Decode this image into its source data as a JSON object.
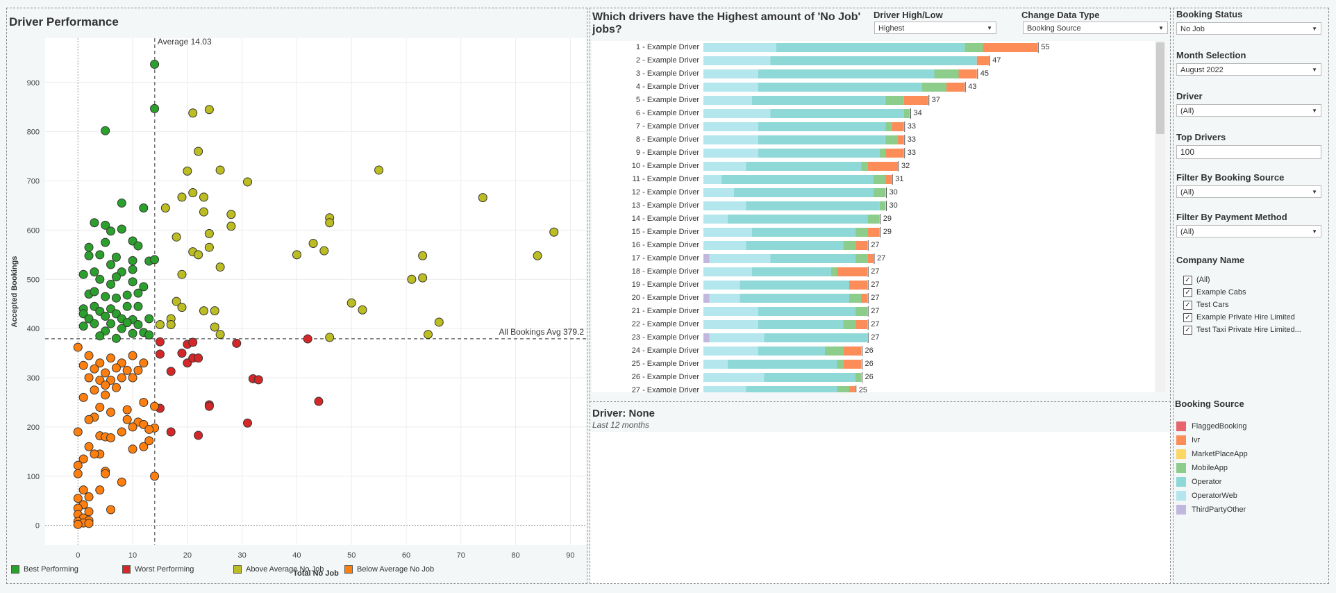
{
  "scatter": {
    "title": "Driver Performance",
    "avg_x_label": "Average 14.03",
    "avg_y_label": "All Bookings Avg 379.2",
    "legend": [
      {
        "label": "Best Performing",
        "color": "#2ca02c"
      },
      {
        "label": "Worst Performing",
        "color": "#d62728"
      },
      {
        "label": "Above Average No Job",
        "color": "#bcbd22"
      },
      {
        "label": "Below Average No Job",
        "color": "#ff7f0e"
      }
    ]
  },
  "bars": {
    "title_line1": "Which drivers have the Highest amount of 'No Job'",
    "title_line2": "jobs?",
    "high_low_label": "Driver High/Low",
    "high_low_value": "Highest",
    "data_type_label": "Change Data Type",
    "data_type_value": "Booking Source"
  },
  "detail": {
    "title": "Driver: None",
    "subtitle": "Last 12 months"
  },
  "filters": {
    "booking_status_label": "Booking Status",
    "booking_status_value": "No Job",
    "month_label": "Month Selection",
    "month_value": "August 2022",
    "driver_label": "Driver",
    "driver_value": "(All)",
    "top_drivers_label": "Top Drivers",
    "top_drivers_value": "100",
    "booking_source_filter_label": "Filter By Booking Source",
    "booking_source_filter_value": "(All)",
    "payment_label": "Filter By Payment Method",
    "payment_value": "(All)",
    "company_label": "Company Name",
    "companies": [
      "(All)",
      "Example Cabs",
      "Test Cars",
      "Example Private Hire Limited",
      "Test Taxi Private Hire Limited..."
    ],
    "booking_source_legend_title": "Booking Source",
    "booking_source_legend": [
      {
        "label": "FlaggedBooking",
        "color": "#e8656b"
      },
      {
        "label": "Ivr",
        "color": "#fc8d59"
      },
      {
        "label": "MarketPlaceApp",
        "color": "#fdd763"
      },
      {
        "label": "MobileApp",
        "color": "#8ccd8c"
      },
      {
        "label": "Operator",
        "color": "#8fd8d8"
      },
      {
        "label": "OperatorWeb",
        "color": "#b4e6ee"
      },
      {
        "label": "ThirdPartyOther",
        "color": "#c2b8de"
      }
    ]
  },
  "chart_data": [
    {
      "type": "scatter",
      "title": "Driver Performance",
      "xlabel": "Total No Job",
      "ylabel": "Accepted Bookings",
      "xlim": [
        -6,
        93
      ],
      "ylim": [
        -40,
        990
      ],
      "x_ticks": [
        0,
        10,
        20,
        30,
        40,
        50,
        60,
        70,
        80,
        90
      ],
      "y_ticks": [
        0,
        100,
        200,
        300,
        400,
        500,
        600,
        700,
        800,
        900
      ],
      "reference_lines": {
        "x_average": 14.03,
        "y_average": 379.2
      },
      "grid": true,
      "legend_position": "bottom",
      "series": [
        {
          "name": "Best Performing",
          "color": "#2ca02c",
          "points": [
            [
              14,
              937
            ],
            [
              14,
              847
            ],
            [
              5,
              802
            ],
            [
              8,
              655
            ],
            [
              12,
              645
            ],
            [
              3,
              615
            ],
            [
              5,
              610
            ],
            [
              6,
              598
            ],
            [
              8,
              602
            ],
            [
              2,
              565
            ],
            [
              5,
              575
            ],
            [
              10,
              578
            ],
            [
              11,
              568
            ],
            [
              4,
              550
            ],
            [
              2,
              548
            ],
            [
              7,
              545
            ],
            [
              10,
              538
            ],
            [
              13,
              537
            ],
            [
              14,
              540
            ],
            [
              1,
              510
            ],
            [
              3,
              515
            ],
            [
              6,
              530
            ],
            [
              8,
              515
            ],
            [
              10,
              520
            ],
            [
              7,
              505
            ],
            [
              4,
              500
            ],
            [
              6,
              490
            ],
            [
              10,
              495
            ],
            [
              12,
              485
            ],
            [
              2,
              470
            ],
            [
              3,
              475
            ],
            [
              5,
              465
            ],
            [
              7,
              462
            ],
            [
              9,
              468
            ],
            [
              11,
              472
            ],
            [
              1,
              440
            ],
            [
              3,
              445
            ],
            [
              6,
              440
            ],
            [
              9,
              445
            ],
            [
              11,
              445
            ],
            [
              1,
              430
            ],
            [
              4,
              435
            ],
            [
              7,
              430
            ],
            [
              2,
              420
            ],
            [
              5,
              425
            ],
            [
              8,
              420
            ],
            [
              10,
              418
            ],
            [
              13,
              420
            ],
            [
              3,
              410
            ],
            [
              6,
              410
            ],
            [
              9,
              412
            ],
            [
              11,
              408
            ],
            [
              1,
              405
            ],
            [
              5,
              395
            ],
            [
              8,
              400
            ],
            [
              10,
              390
            ],
            [
              12,
              392
            ],
            [
              13,
              387
            ],
            [
              4,
              385
            ],
            [
              7,
              380
            ]
          ]
        },
        {
          "name": "Worst Performing",
          "color": "#d62728",
          "points": [
            [
              15,
              373
            ],
            [
              20,
              368
            ],
            [
              21,
              372
            ],
            [
              29,
              370
            ],
            [
              42,
              379
            ],
            [
              15,
              348
            ],
            [
              19,
              350
            ],
            [
              17,
              313
            ],
            [
              20,
              330
            ],
            [
              21,
              340
            ],
            [
              22,
              340
            ],
            [
              32,
              298
            ],
            [
              33,
              296
            ],
            [
              44,
              252
            ],
            [
              24,
              245
            ],
            [
              24,
              242
            ],
            [
              15,
              238
            ],
            [
              31,
              208
            ],
            [
              17,
              190
            ],
            [
              22,
              183
            ]
          ]
        },
        {
          "name": "Above Average No Job",
          "color": "#bcbd22",
          "points": [
            [
              21,
              838
            ],
            [
              24,
              845
            ],
            [
              22,
              760
            ],
            [
              20,
              720
            ],
            [
              26,
              722
            ],
            [
              55,
              722
            ],
            [
              31,
              698
            ],
            [
              21,
              676
            ],
            [
              23,
              667
            ],
            [
              19,
              667
            ],
            [
              74,
              666
            ],
            [
              16,
              645
            ],
            [
              23,
              637
            ],
            [
              28,
              632
            ],
            [
              46,
              625
            ],
            [
              46,
              615
            ],
            [
              28,
              608
            ],
            [
              24,
              593
            ],
            [
              18,
              586
            ],
            [
              43,
              573
            ],
            [
              24,
              565
            ],
            [
              21,
              556
            ],
            [
              22,
              550
            ],
            [
              40,
              550
            ],
            [
              45,
              558
            ],
            [
              63,
              548
            ],
            [
              84,
              548
            ],
            [
              87,
              596
            ],
            [
              26,
              525
            ],
            [
              19,
              510
            ],
            [
              61,
              500
            ],
            [
              63,
              503
            ],
            [
              50,
              452
            ],
            [
              52,
              438
            ],
            [
              18,
              455
            ],
            [
              19,
              443
            ],
            [
              23,
              436
            ],
            [
              25,
              436
            ],
            [
              17,
              420
            ],
            [
              17,
              408
            ],
            [
              15,
              408
            ],
            [
              25,
              403
            ],
            [
              26,
              388
            ],
            [
              46,
              382
            ],
            [
              64,
              388
            ],
            [
              66,
              413
            ]
          ]
        },
        {
          "name": "Below Average No Job",
          "color": "#ff7f0e",
          "points": [
            [
              0,
              362
            ],
            [
              2,
              345
            ],
            [
              4,
              330
            ],
            [
              6,
              340
            ],
            [
              8,
              330
            ],
            [
              10,
              345
            ],
            [
              12,
              330
            ],
            [
              1,
              325
            ],
            [
              3,
              318
            ],
            [
              5,
              310
            ],
            [
              7,
              320
            ],
            [
              9,
              315
            ],
            [
              11,
              315
            ],
            [
              2,
              300
            ],
            [
              4,
              295
            ],
            [
              6,
              295
            ],
            [
              8,
              300
            ],
            [
              10,
              300
            ],
            [
              5,
              285
            ],
            [
              7,
              280
            ],
            [
              1,
              260
            ],
            [
              3,
              275
            ],
            [
              5,
              265
            ],
            [
              12,
              250
            ],
            [
              14,
              242
            ],
            [
              4,
              240
            ],
            [
              6,
              230
            ],
            [
              9,
              235
            ],
            [
              3,
              220
            ],
            [
              2,
              215
            ],
            [
              9,
              215
            ],
            [
              11,
              210
            ],
            [
              12,
              205
            ],
            [
              14,
              198
            ],
            [
              10,
              200
            ],
            [
              13,
              195
            ],
            [
              0,
              190
            ],
            [
              4,
              182
            ],
            [
              5,
              180
            ],
            [
              6,
              178
            ],
            [
              8,
              190
            ],
            [
              2,
              160
            ],
            [
              10,
              155
            ],
            [
              12,
              160
            ],
            [
              13,
              172
            ],
            [
              4,
              145
            ],
            [
              3,
              145
            ],
            [
              1,
              135
            ],
            [
              5,
              110
            ],
            [
              5,
              105
            ],
            [
              8,
              88
            ],
            [
              0,
              122
            ],
            [
              0,
              105
            ],
            [
              14,
              100
            ],
            [
              4,
              72
            ],
            [
              6,
              32
            ],
            [
              1,
              72
            ],
            [
              0,
              55
            ],
            [
              2,
              58
            ],
            [
              1,
              42
            ],
            [
              0,
              35
            ],
            [
              2,
              28
            ],
            [
              0,
              22
            ],
            [
              1,
              15
            ],
            [
              2,
              10
            ],
            [
              0,
              8
            ],
            [
              1,
              5
            ],
            [
              0,
              2
            ],
            [
              2,
              4
            ]
          ]
        }
      ]
    },
    {
      "type": "bar",
      "stacked": true,
      "orientation": "horizontal",
      "title": "Which drivers have the Highest amount of 'No Job' jobs?",
      "stack_order": [
        "ThirdPartyOther",
        "OperatorWeb",
        "Operator",
        "MobileApp",
        "Ivr"
      ],
      "colors": {
        "ThirdPartyOther": "#c2b8de",
        "OperatorWeb": "#b4e6ee",
        "Operator": "#8fd8d8",
        "MobileApp": "#8ccd8c",
        "Ivr": "#fc8d59"
      },
      "categories": [
        "1 - Example Driver",
        "2 - Example Driver",
        "3 - Example Driver",
        "4 - Example Driver",
        "5 - Example Driver",
        "6 - Example Driver",
        "7 - Example Driver",
        "8 - Example Driver",
        "9 - Example Driver",
        "10 - Example Driver",
        "11 - Example Driver",
        "12 - Example Driver",
        "13 - Example Driver",
        "14 - Example Driver",
        "15 - Example Driver",
        "16 - Example Driver",
        "17 - Example Driver",
        "18 - Example Driver",
        "19 - Example Driver",
        "20 - Example Driver",
        "21 - Example Driver",
        "22 - Example Driver",
        "23 - Example Driver",
        "24 - Example Driver",
        "25 - Example Driver",
        "26 - Example Driver",
        "27 - Example Driver"
      ],
      "totals": [
        55,
        47,
        45,
        43,
        37,
        34,
        33,
        33,
        33,
        32,
        31,
        30,
        30,
        29,
        29,
        27,
        27,
        27,
        27,
        27,
        27,
        27,
        27,
        26,
        26,
        26,
        25
      ],
      "segments": [
        [
          0,
          12,
          31,
          3,
          9
        ],
        [
          0,
          11,
          34,
          0,
          2
        ],
        [
          0,
          9,
          29,
          4,
          3
        ],
        [
          0,
          9,
          27,
          4,
          3
        ],
        [
          0,
          8,
          22,
          3,
          4
        ],
        [
          0,
          11,
          22,
          1,
          0
        ],
        [
          0,
          9,
          21,
          1,
          2
        ],
        [
          0,
          9,
          21,
          2,
          1
        ],
        [
          0,
          9,
          20,
          1,
          3
        ],
        [
          0,
          7,
          19,
          1,
          5
        ],
        [
          0,
          3,
          25,
          2,
          1
        ],
        [
          0,
          5,
          23,
          2,
          0
        ],
        [
          0,
          7,
          22,
          1,
          0
        ],
        [
          0,
          4,
          23,
          2,
          0
        ],
        [
          0,
          8,
          17,
          2,
          2
        ],
        [
          0,
          7,
          16,
          2,
          2
        ],
        [
          1,
          10,
          14,
          2,
          1
        ],
        [
          0,
          8,
          13,
          1,
          5
        ],
        [
          0,
          6,
          18,
          0,
          3
        ],
        [
          1,
          5,
          18,
          2,
          1
        ],
        [
          0,
          9,
          16,
          2,
          0
        ],
        [
          0,
          9,
          14,
          2,
          2
        ],
        [
          1,
          9,
          17,
          0,
          0
        ],
        [
          0,
          9,
          11,
          3,
          3
        ],
        [
          0,
          4,
          18,
          1,
          3
        ],
        [
          0,
          10,
          15,
          1,
          0
        ],
        [
          0,
          7,
          15,
          2,
          1
        ]
      ]
    }
  ]
}
